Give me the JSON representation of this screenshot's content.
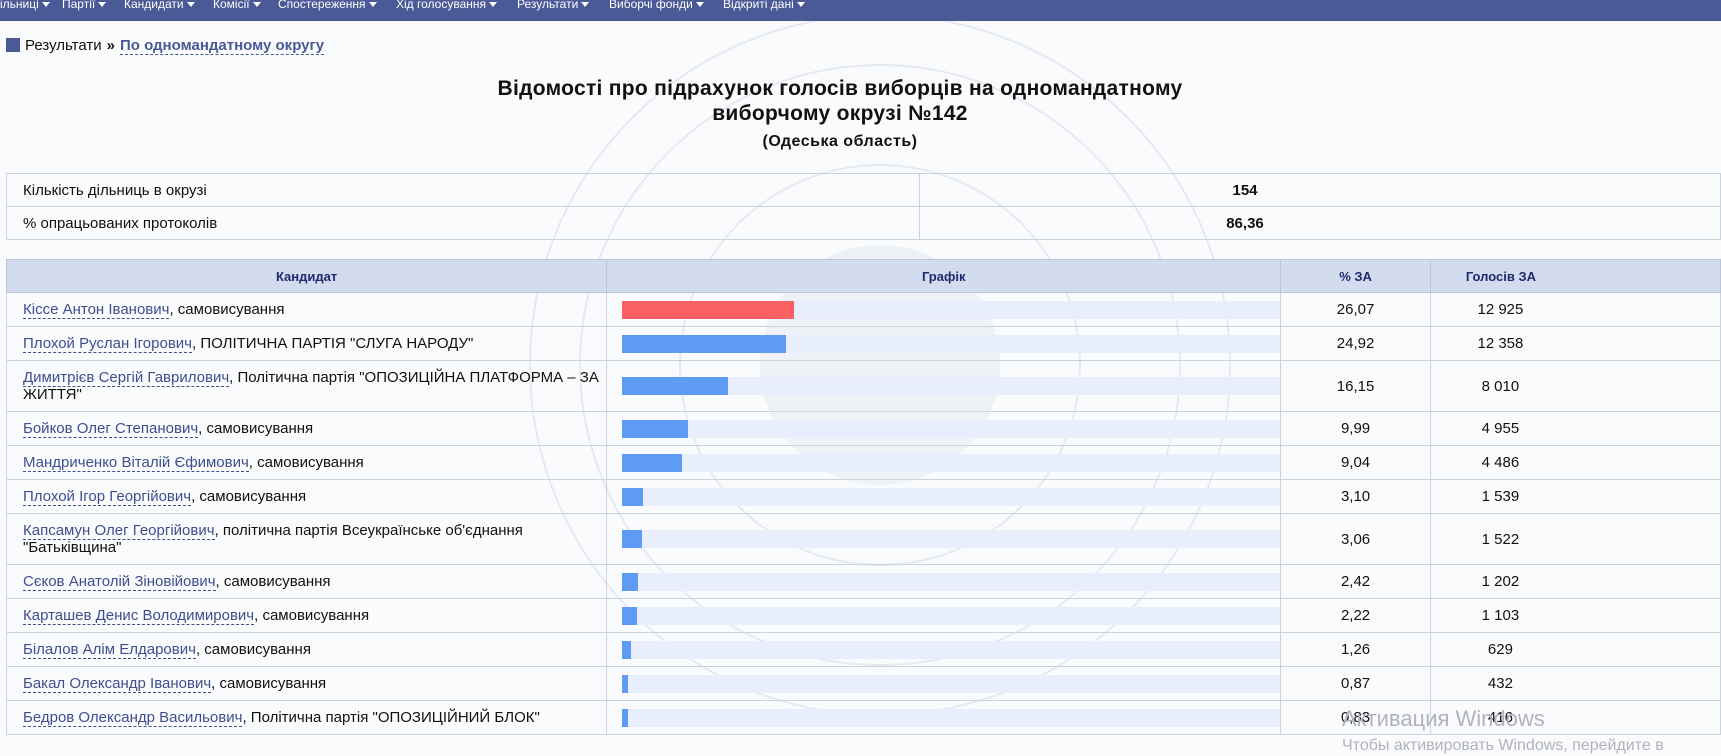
{
  "nav": {
    "items": [
      {
        "label": "ільниці"
      },
      {
        "label": "Партії"
      },
      {
        "label": "Кандидати"
      },
      {
        "label": "Комісії"
      },
      {
        "label": "Спостереження"
      },
      {
        "label": "Хід голосування"
      },
      {
        "label": "Результати"
      },
      {
        "label": "Виборчі фонди"
      },
      {
        "label": "Відкриті дані"
      }
    ]
  },
  "breadcrumb": {
    "root": "Результати",
    "separator": "»",
    "current": "По одномандатному округу"
  },
  "page": {
    "title_line1": "Відомості про підрахунок голосів виборців на одномандатному",
    "title_line2": "виборчому окрузі №142",
    "subtitle": "(Одеська область)"
  },
  "summary": [
    {
      "label": "Кількість дільниць в окрузі",
      "value": "154"
    },
    {
      "label": "% опрацьованих протоколів",
      "value": "86,36"
    }
  ],
  "table": {
    "headers": {
      "candidate": "Кандидат",
      "chart": "Графік",
      "percent": "% ЗА",
      "votes": "Голосів ЗА"
    },
    "rows": [
      {
        "name": "Кіссе Антон Іванович",
        "party": ", самовисування",
        "percent": "26,07",
        "votes": "12 925",
        "share": 26.07
      },
      {
        "name": "Плохой Руслан Ігорович",
        "party": ", ПОЛІТИЧНА ПАРТІЯ \"СЛУГА НАРОДУ\"",
        "percent": "24,92",
        "votes": "12 358",
        "share": 24.92
      },
      {
        "name": "Димитрієв Сергій Гаврилович",
        "party": ", Політична партія \"ОПОЗИЦІЙНА ПЛАТФОРМА – ЗА ЖИТТЯ\"",
        "percent": "16,15",
        "votes": "8 010",
        "share": 16.15
      },
      {
        "name": "Бойков Олег Степанович",
        "party": ", самовисування",
        "percent": "9,99",
        "votes": "4 955",
        "share": 9.99
      },
      {
        "name": "Мандриченко Віталій Єфимович",
        "party": ", самовисування",
        "percent": "9,04",
        "votes": "4 486",
        "share": 9.04
      },
      {
        "name": "Плохой Ігор Георгійович",
        "party": ", самовисування",
        "percent": "3,10",
        "votes": "1 539",
        "share": 3.1
      },
      {
        "name": "Капсамун Олег Георгійович",
        "party": ", політична партія Всеукраїнське об'єднання \"Батьківщина\"",
        "percent": "3,06",
        "votes": "1 522",
        "share": 3.06
      },
      {
        "name": "Сєков Анатолій Зіновійович",
        "party": ", самовисування",
        "percent": "2,42",
        "votes": "1 202",
        "share": 2.42
      },
      {
        "name": "Карташев Денис Володимирович",
        "party": ", самовисування",
        "percent": "2,22",
        "votes": "1 103",
        "share": 2.22
      },
      {
        "name": "Білалов Алім Елдарович",
        "party": ", самовисування",
        "percent": "1,26",
        "votes": "629",
        "share": 1.26
      },
      {
        "name": "Бакал Олександр Іванович",
        "party": ", самовисування",
        "percent": "0,87",
        "votes": "432",
        "share": 0.87
      },
      {
        "name": "Бедров Олександр Васильович",
        "party": ", Політична партія \"ОПОЗИЦІЙНИЙ БЛОК\"",
        "percent": "0,83",
        "votes": "416",
        "share": 0.83
      }
    ]
  },
  "colors": {
    "leader": "#fa6063",
    "bar": "#5e9bf5",
    "track": "#e8eefc",
    "nav": "#4a5a96"
  },
  "windows_activation": {
    "title": "Активация Windows",
    "subtitle": "Чтобы активировать Windows, перейдите в"
  }
}
